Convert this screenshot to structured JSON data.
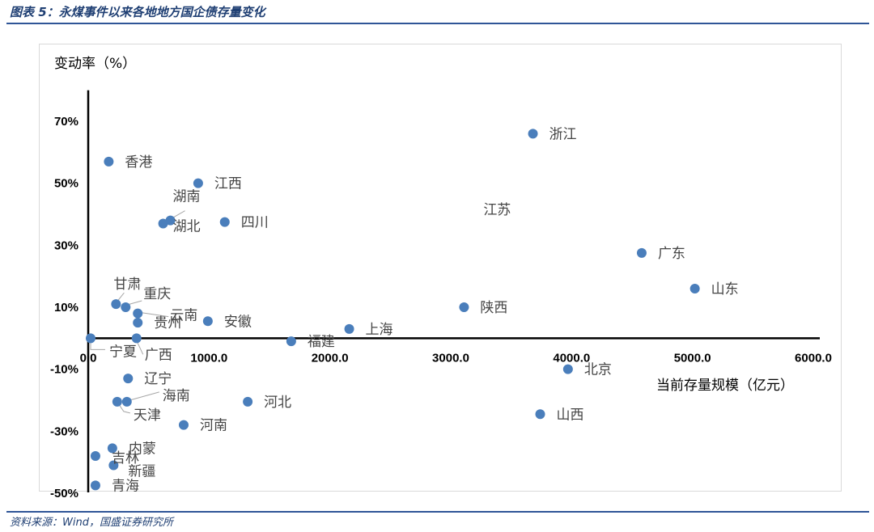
{
  "figure": {
    "title": "图表 5：永煤事件以来各地地方国企债存量变化",
    "source": "资料来源：Wind，国盛证券研究所"
  },
  "chart_data": {
    "type": "scatter",
    "title": "",
    "xlabel": "当前存量规模（亿元）",
    "ylabel": "变动率（%）",
    "xlim": [
      0,
      6000
    ],
    "ylim": [
      -50,
      80
    ],
    "x_ticks": [
      {
        "value": 0,
        "label": "0.0"
      },
      {
        "value": 1000,
        "label": "1000.0"
      },
      {
        "value": 2000,
        "label": "2000.0"
      },
      {
        "value": 3000,
        "label": "3000.0"
      },
      {
        "value": 4000,
        "label": "4000.0"
      },
      {
        "value": 5000,
        "label": "5000.0"
      },
      {
        "value": 6000,
        "label": "6000.0"
      }
    ],
    "y_ticks": [
      {
        "value": 70,
        "label": "70%"
      },
      {
        "value": 50,
        "label": "50%"
      },
      {
        "value": 30,
        "label": "30%"
      },
      {
        "value": 10,
        "label": "10%"
      },
      {
        "value": -10,
        "label": "-10%"
      },
      {
        "value": -30,
        "label": "-30%"
      },
      {
        "value": -50,
        "label": "-50%"
      }
    ],
    "marker_color": "#4a7ebb",
    "points": [
      {
        "name": "浙江",
        "x": 3680,
        "y": 66
      },
      {
        "name": "香港",
        "x": 170,
        "y": 57
      },
      {
        "name": "江西",
        "x": 910,
        "y": 50
      },
      {
        "name": "湖南",
        "x": 680,
        "y": 38
      },
      {
        "name": "湖北",
        "x": 620,
        "y": 37
      },
      {
        "name": "四川",
        "x": 1130,
        "y": 37.5
      },
      {
        "name": "江苏",
        "x": null,
        "y": null
      },
      {
        "name": "广东",
        "x": 4580,
        "y": 27.5
      },
      {
        "name": "山东",
        "x": 5020,
        "y": 16
      },
      {
        "name": "甘肃",
        "x": 230,
        "y": 11
      },
      {
        "name": "重庆",
        "x": 310,
        "y": 10
      },
      {
        "name": "云南",
        "x": 410,
        "y": 8
      },
      {
        "name": "贵州",
        "x": 410,
        "y": 5
      },
      {
        "name": "陕西",
        "x": 3110,
        "y": 10
      },
      {
        "name": "安徽",
        "x": 990,
        "y": 5.5
      },
      {
        "name": "上海",
        "x": 2160,
        "y": 3
      },
      {
        "name": "福建",
        "x": 1680,
        "y": -1
      },
      {
        "name": "宁夏",
        "x": 20,
        "y": 0
      },
      {
        "name": "广西",
        "x": 400,
        "y": 0
      },
      {
        "name": "北京",
        "x": 3970,
        "y": -10
      },
      {
        "name": "辽宁",
        "x": 330,
        "y": -13
      },
      {
        "name": "海南",
        "x": 320,
        "y": -20.5
      },
      {
        "name": "天津",
        "x": 240,
        "y": -20.5
      },
      {
        "name": "河北",
        "x": 1320,
        "y": -20.5
      },
      {
        "name": "河南",
        "x": 790,
        "y": -28
      },
      {
        "name": "山西",
        "x": 3740,
        "y": -24.5
      },
      {
        "name": "内蒙",
        "x": 200,
        "y": -35.5
      },
      {
        "name": "吉林",
        "x": 60,
        "y": -38
      },
      {
        "name": "新疆",
        "x": 210,
        "y": -41
      },
      {
        "name": "青海",
        "x": 60,
        "y": -47.5
      }
    ],
    "grid": false,
    "legend": "none"
  }
}
